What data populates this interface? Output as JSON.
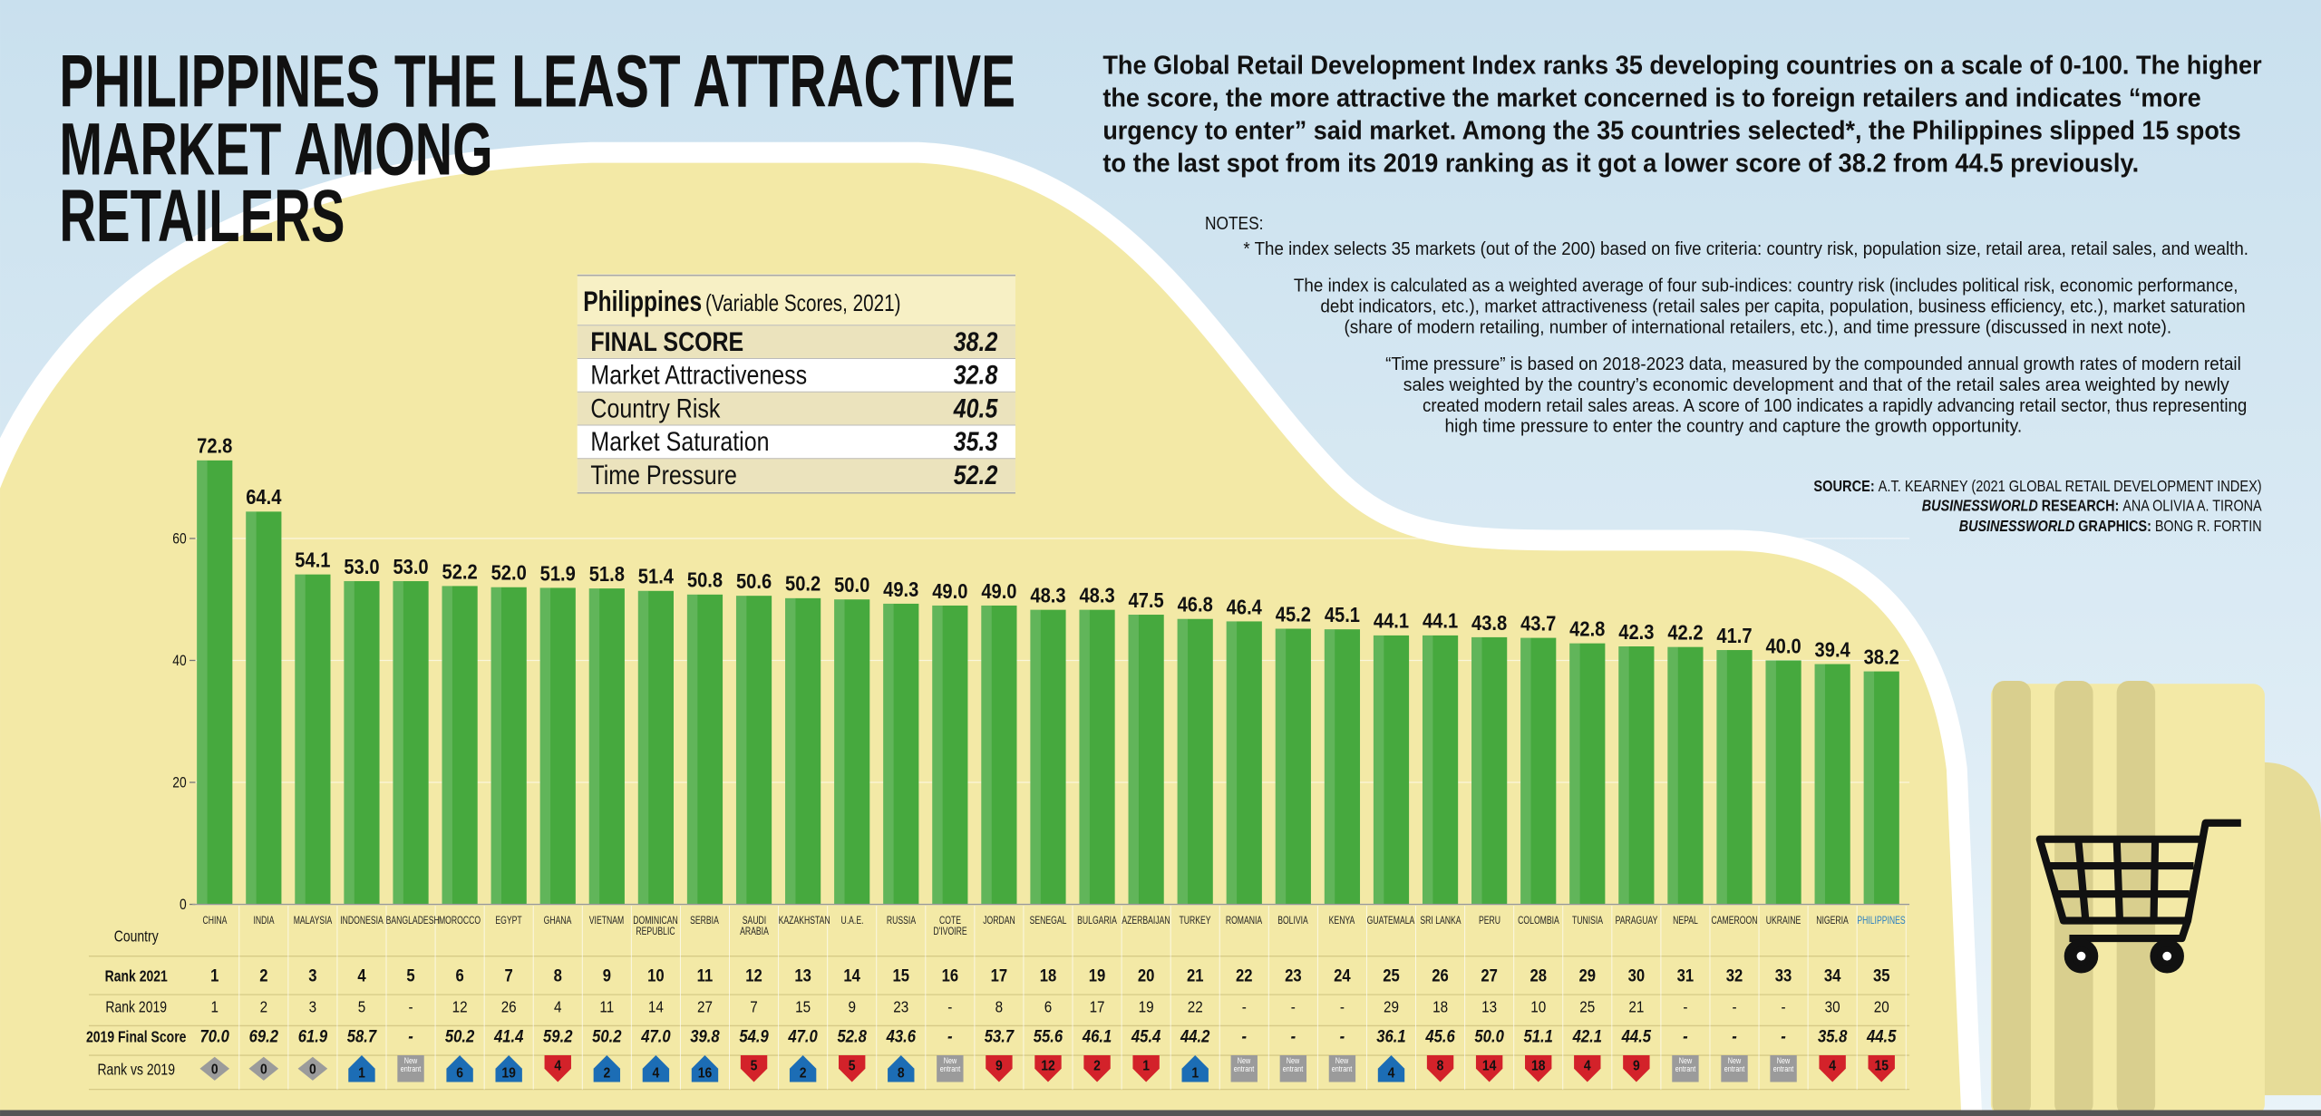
{
  "title_lines": [
    "PHILIPPINES THE LEAST ATTRACTIVE",
    "MARKET AMONG",
    "RETAILERS"
  ],
  "intro_lines": [
    "The Global Retail Development Index ranks 35 developing countries on a scale of 0-100. The higher",
    "the score, the more attractive the market concerned is to foreign retailers and indicates “more",
    "urgency to enter” said market. Among the 35 countries selected*, the Philippines slipped 15 spots",
    "to the last spot from its 2019 ranking as it got a lower score of 38.2 from 44.5 previously."
  ],
  "notes": {
    "heading": "NOTES:",
    "lines": [
      "* The index selects 35 markets (out of the 200) based on five criteria: country risk, population size, retail area, retail sales, and wealth.",
      "The index is calculated as a weighted average of four sub-indices: country risk (includes political risk, economic performance,",
      "debt indicators, etc.), market attractiveness (retail sales per capita, population, business efficiency, etc.), market saturation",
      "(share of modern retailing, number of international retailers, etc.), and time pressure (discussed in next note).",
      "“Time pressure” is based on 2018-2023 data, measured by the compounded annual growth rates of modern retail",
      "sales weighted by the country’s economic development and that of the retail sales area weighted by newly",
      "created modern retail sales areas. A score of 100 indicates a rapidly advancing retail sector, thus representing",
      "high time pressure to enter the country and capture the growth opportunity."
    ]
  },
  "credits": [
    {
      "label": "SOURCE:",
      "text": "A.T. KEARNEY (2021 GLOBAL RETAIL DEVELOPMENT INDEX)"
    },
    {
      "publication": "BUSINESSWORLD",
      "label": "RESEARCH:",
      "text": "ANA OLIVIA A. TIRONA"
    },
    {
      "publication": "BUSINESSWORLD",
      "label": "GRAPHICS:",
      "text": "BONG R. FORTIN"
    }
  ],
  "inset_table": {
    "title": "Philippines",
    "subtitle": "(Variable Scores, 2021)",
    "rows": [
      {
        "label": "FINAL SCORE",
        "value": 38.2
      },
      {
        "label": "Market Attractiveness",
        "value": 32.8
      },
      {
        "label": "Country Risk",
        "value": 40.5
      },
      {
        "label": "Market Saturation",
        "value": 35.3
      },
      {
        "label": "Time Pressure",
        "value": 52.2
      }
    ]
  },
  "chart_data": {
    "type": "bar",
    "categories": [
      "CHINA",
      "INDIA",
      "MALAYSIA",
      "INDONESIA",
      "BANGLADESH",
      "MOROCCO",
      "EGYPT",
      "GHANA",
      "VIETNAM",
      "DOMINICAN REPUBLIC",
      "SERBIA",
      "SAUDI ARABIA",
      "KAZAKHSTAN",
      "U.A.E.",
      "RUSSIA",
      "COTE D'IVOIRE",
      "JORDAN",
      "SENEGAL",
      "BULGARIA",
      "AZERBAIJAN",
      "TURKEY",
      "ROMANIA",
      "BOLIVIA",
      "KENYA",
      "GUATEMALA",
      "SRI LANKA",
      "PERU",
      "COLOMBIA",
      "TUNISIA",
      "PARAGUAY",
      "NEPAL",
      "CAMEROON",
      "UKRAINE",
      "NIGERIA",
      "PHILIPPINES"
    ],
    "values": [
      72.8,
      64.4,
      54.1,
      53.0,
      53.0,
      52.2,
      52.0,
      51.9,
      51.8,
      51.4,
      50.8,
      50.6,
      50.2,
      50.0,
      49.3,
      49.0,
      49.0,
      48.3,
      48.3,
      47.5,
      46.8,
      46.4,
      45.2,
      45.1,
      44.1,
      44.1,
      43.8,
      43.7,
      42.8,
      42.3,
      42.2,
      41.7,
      40.0,
      39.4,
      38.2
    ],
    "value_labels": [
      "72.8",
      "64.4",
      "54.1",
      "53.0",
      "53.0",
      "52.2",
      "52.0",
      "51.9",
      "51.8",
      "51.4",
      "50.8",
      "50.6",
      "50.2",
      "50.0",
      "49.3",
      "49.0",
      "49.0",
      "48.3",
      "48.3",
      "47.5",
      "46.8",
      "46.4",
      "45.2",
      "45.1",
      "44.1",
      "44.1",
      "43.8",
      "43.7",
      "42.8",
      "42.3",
      "42.2",
      "41.7",
      "40.0",
      "39.4",
      "38.2"
    ],
    "color": "#46a93e",
    "highlight_category": "PHILIPPINES",
    "highlight_color": "#2a7fc1",
    "ylim": [
      0,
      75
    ],
    "yticks": [
      0,
      20,
      40,
      60
    ],
    "grid": true
  },
  "table": {
    "row_labels": [
      "Country",
      "Rank 2021",
      "Rank 2019",
      "2019 Final Score",
      "Rank vs 2019"
    ],
    "rank_2021": [
      1,
      2,
      3,
      4,
      5,
      6,
      7,
      8,
      9,
      10,
      11,
      12,
      13,
      14,
      15,
      16,
      17,
      18,
      19,
      20,
      21,
      22,
      23,
      24,
      25,
      26,
      27,
      28,
      29,
      30,
      31,
      32,
      33,
      34,
      35
    ],
    "rank_2019": [
      1,
      2,
      3,
      5,
      "-",
      12,
      26,
      4,
      11,
      14,
      27,
      7,
      15,
      9,
      23,
      "-",
      8,
      6,
      17,
      19,
      22,
      "-",
      "-",
      "-",
      29,
      18,
      13,
      10,
      25,
      21,
      "-",
      "-",
      "-",
      30,
      20
    ],
    "score_2019": [
      "70.0",
      "69.2",
      "61.9",
      "58.7",
      "-",
      "50.2",
      "41.4",
      "59.2",
      "50.2",
      "47.0",
      "39.8",
      "54.9",
      "47.0",
      "52.8",
      "43.6",
      "-",
      "53.7",
      "55.6",
      "46.1",
      "45.4",
      "44.2",
      "-",
      "-",
      "-",
      "36.1",
      "45.6",
      "50.0",
      "51.1",
      "42.1",
      "44.5",
      "-",
      "-",
      "-",
      "35.8",
      "44.5"
    ],
    "rank_change": [
      "0",
      "0",
      "0",
      "1",
      "New entrant",
      "6",
      "19",
      "4",
      "2",
      "4",
      "16",
      "5",
      "2",
      "5",
      "8",
      "New entrant",
      "9",
      "12",
      "2",
      "1",
      "1",
      "New entrant",
      "New entrant",
      "New entrant",
      "4",
      "8",
      "14",
      "18",
      "4",
      "9",
      "New entrant",
      "New entrant",
      "New entrant",
      "4",
      "15"
    ],
    "rank_change_direction": [
      "same",
      "same",
      "same",
      "up",
      "new",
      "up",
      "up",
      "down",
      "up",
      "up",
      "up",
      "down",
      "up",
      "down",
      "up",
      "new",
      "down",
      "down",
      "down",
      "down",
      "up",
      "new",
      "new",
      "new",
      "up",
      "down",
      "down",
      "down",
      "down",
      "down",
      "new",
      "new",
      "new",
      "down",
      "down"
    ],
    "direction_colors": {
      "up": "#1c6db5",
      "down": "#d3222a",
      "same": "#9b9b9b",
      "new": "#9b9b9b"
    }
  }
}
